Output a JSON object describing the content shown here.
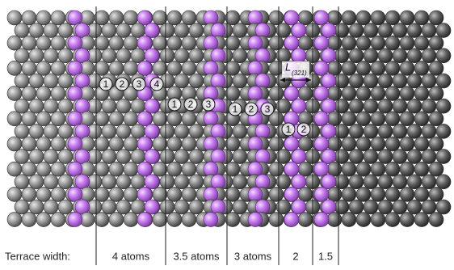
{
  "terrace_label": "Terrace width:",
  "terraces": [
    {
      "width": "4 atoms",
      "atom_numbers": [
        "1",
        "2",
        "3",
        "4"
      ]
    },
    {
      "width": "3.5 atoms",
      "atom_numbers": [
        "1",
        "2",
        "3"
      ]
    },
    {
      "width": "3 atoms",
      "atom_numbers": [
        "1",
        "2",
        "3"
      ]
    },
    {
      "width": "2",
      "atom_numbers": [
        "1",
        "2"
      ]
    },
    {
      "width": "1.5"
    }
  ],
  "length_label": {
    "symbol": "L",
    "subscript": "(321)"
  }
}
